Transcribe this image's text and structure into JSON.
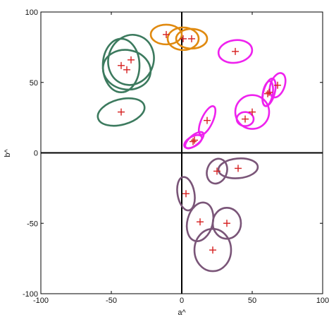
{
  "chart_data": {
    "type": "scatter",
    "xlabel": "a^",
    "ylabel": "b^",
    "xlim": [
      -100,
      100
    ],
    "ylim": [
      -100,
      100
    ],
    "xticks": [
      -100,
      -50,
      0,
      50,
      100
    ],
    "yticks": [
      -100,
      -50,
      0,
      50,
      100
    ],
    "xtick_labels": [
      "-100",
      "-50",
      "0",
      "50",
      "100"
    ],
    "ytick_labels": [
      "-100",
      "-50",
      "0",
      "50",
      "100"
    ],
    "grid": false,
    "zero_lines": true,
    "marker": "plus",
    "marker_color": "#d62020",
    "series": [
      {
        "color": "#3c7a5e",
        "ellipses": [
          {
            "cx": -36,
            "cy": 66,
            "rx": 16,
            "ry": 18,
            "angle": 20
          },
          {
            "cx": -43,
            "cy": 62,
            "rx": 13,
            "ry": 19,
            "angle": 0
          },
          {
            "cx": -39,
            "cy": 59,
            "rx": 17,
            "ry": 14,
            "angle": 10
          },
          {
            "cx": -43,
            "cy": 29,
            "rx": 17,
            "ry": 9,
            "angle": -15
          }
        ]
      },
      {
        "color": "#e08a10",
        "ellipses": [
          {
            "cx": -11,
            "cy": 84,
            "rx": 11,
            "ry": 7,
            "angle": 0
          },
          {
            "cx": 1,
            "cy": 81,
            "rx": 11,
            "ry": 8,
            "angle": 0
          },
          {
            "cx": 7,
            "cy": 81,
            "rx": 11,
            "ry": 7,
            "angle": 0
          }
        ]
      },
      {
        "color": "#ee22ee",
        "ellipses": [
          {
            "cx": 38,
            "cy": 72,
            "rx": 12,
            "ry": 8,
            "angle": -8
          },
          {
            "cx": 18,
            "cy": 23,
            "rx": 11,
            "ry": 4,
            "angle": -65
          },
          {
            "cx": 9,
            "cy": 9,
            "rx": 8,
            "ry": 3.5,
            "angle": -40
          },
          {
            "cx": 8,
            "cy": 8,
            "rx": 7,
            "ry": 3.5,
            "angle": -30
          },
          {
            "cx": 45,
            "cy": 24,
            "rx": 6,
            "ry": 5,
            "angle": 0
          },
          {
            "cx": 50,
            "cy": 29,
            "rx": 12,
            "ry": 12,
            "angle": 0
          },
          {
            "cx": 61,
            "cy": 42,
            "rx": 3.5,
            "ry": 9,
            "angle": 10
          },
          {
            "cx": 62,
            "cy": 43,
            "rx": 4,
            "ry": 10,
            "angle": 15
          },
          {
            "cx": 68,
            "cy": 48,
            "rx": 5,
            "ry": 9,
            "angle": 20
          }
        ]
      },
      {
        "color": "#7a5578",
        "ellipses": [
          {
            "cx": 40,
            "cy": -11,
            "rx": 14,
            "ry": 7,
            "angle": -5
          },
          {
            "cx": 25,
            "cy": -13,
            "rx": 7,
            "ry": 9,
            "angle": 20
          },
          {
            "cx": 3,
            "cy": -29,
            "rx": 6,
            "ry": 12,
            "angle": -10
          },
          {
            "cx": 13,
            "cy": -49,
            "rx": 9,
            "ry": 14,
            "angle": 15
          },
          {
            "cx": 32,
            "cy": -50,
            "rx": 10,
            "ry": 11,
            "angle": 0
          },
          {
            "cx": 22,
            "cy": -69,
            "rx": 13,
            "ry": 15,
            "angle": 0
          }
        ]
      }
    ]
  }
}
